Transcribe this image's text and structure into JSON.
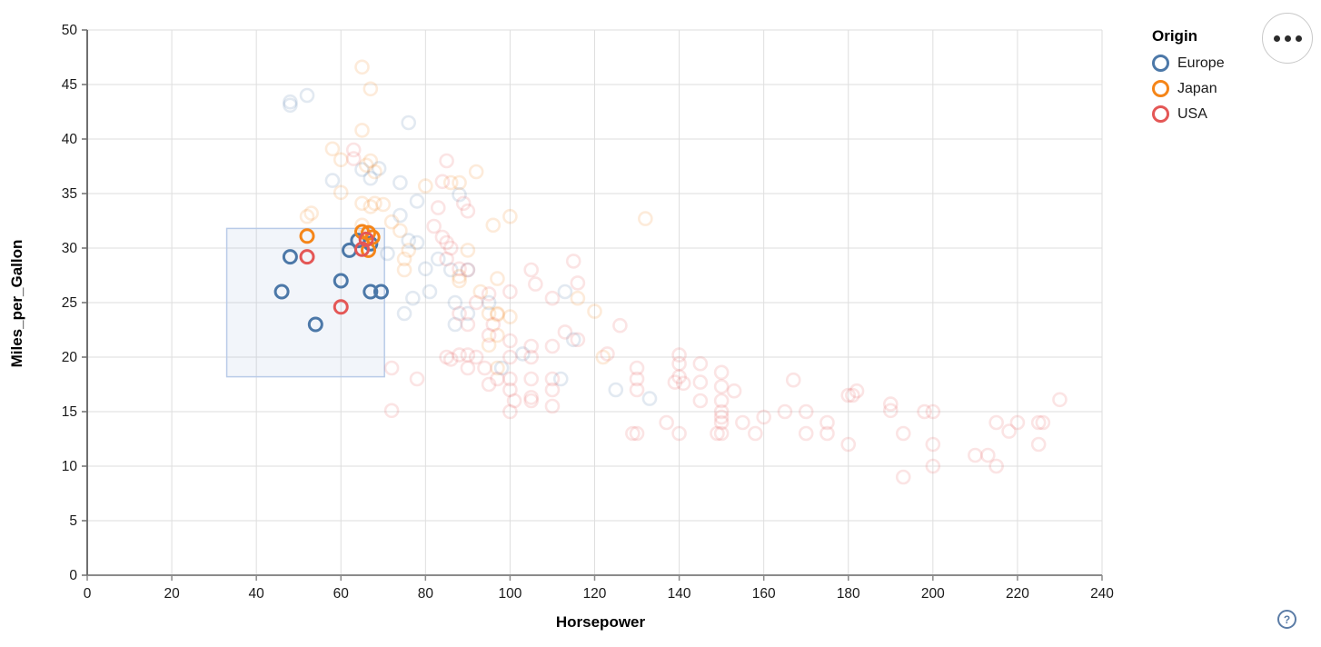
{
  "chart_data": {
    "type": "scatter",
    "title": "",
    "xlabel": "Horsepower",
    "ylabel": "Miles_per_Gallon",
    "xlim": [
      0,
      240
    ],
    "ylim": [
      0,
      50
    ],
    "x_ticks": [
      0,
      20,
      40,
      60,
      80,
      100,
      120,
      140,
      160,
      180,
      200,
      220,
      240
    ],
    "y_ticks": [
      0,
      5,
      10,
      15,
      20,
      25,
      30,
      35,
      40,
      45,
      50
    ],
    "grid": true,
    "legend": {
      "title": "Origin",
      "position": "top-right",
      "entries": [
        {
          "label": "Europe",
          "color": "#4c78a8"
        },
        {
          "label": "Japan",
          "color": "#f58518"
        },
        {
          "label": "USA",
          "color": "#e45756"
        }
      ]
    },
    "brush_selection": {
      "x_range": [
        33,
        70.3
      ],
      "y_range": [
        18.2,
        31.8
      ],
      "fill": "rgba(110,145,205,0.09)",
      "stroke": "#b9cbe8"
    },
    "unselected_opacity": 0.16,
    "series": [
      {
        "name": "Europe",
        "color": "#4c78a8",
        "selected_points": [
          [
            46,
            26
          ],
          [
            48,
            29.2
          ],
          [
            54,
            23
          ],
          [
            60,
            27
          ],
          [
            62,
            29.8
          ],
          [
            64,
            30.7
          ],
          [
            67,
            30.4
          ],
          [
            67,
            26
          ],
          [
            69.5,
            26
          ]
        ],
        "points": [
          [
            48,
            43.1
          ],
          [
            48,
            43.4
          ],
          [
            52,
            44
          ],
          [
            76,
            41.5
          ],
          [
            58,
            36.2
          ],
          [
            65,
            37.2
          ],
          [
            69,
            37.3
          ],
          [
            74,
            36
          ],
          [
            88,
            34.9
          ],
          [
            78,
            34.3
          ],
          [
            74,
            33
          ],
          [
            71,
            29.5
          ],
          [
            78,
            30.5
          ],
          [
            83,
            29
          ],
          [
            81,
            26
          ],
          [
            75,
            24
          ],
          [
            87,
            25
          ],
          [
            90,
            24
          ],
          [
            95,
            25
          ],
          [
            113,
            26
          ],
          [
            90,
            28
          ],
          [
            86,
            28
          ],
          [
            76,
            30.7
          ],
          [
            80,
            28.1
          ],
          [
            77,
            25.4
          ],
          [
            67,
            36.4
          ],
          [
            103,
            20.3
          ],
          [
            98,
            19
          ],
          [
            112,
            18
          ],
          [
            115,
            21.6
          ],
          [
            125,
            17
          ],
          [
            133,
            16.2
          ],
          [
            87,
            23
          ]
        ]
      },
      {
        "name": "Japan",
        "color": "#f58518",
        "selected_points": [
          [
            52,
            31.1
          ],
          [
            65,
            31.5
          ],
          [
            66.5,
            31.4
          ],
          [
            67.5,
            31
          ],
          [
            66.5,
            29.8
          ]
        ],
        "points": [
          [
            65,
            46.6
          ],
          [
            67,
            44.6
          ],
          [
            65,
            40.8
          ],
          [
            58,
            39.1
          ],
          [
            60,
            38.1
          ],
          [
            67,
            38
          ],
          [
            68,
            37
          ],
          [
            66,
            37.6
          ],
          [
            92,
            37
          ],
          [
            86,
            36
          ],
          [
            88,
            36
          ],
          [
            60,
            35.1
          ],
          [
            65,
            34.1
          ],
          [
            68,
            34.1
          ],
          [
            70,
            34
          ],
          [
            67,
            33.8
          ],
          [
            53,
            33.2
          ],
          [
            52,
            32.9
          ],
          [
            65,
            32.1
          ],
          [
            96,
            32.1
          ],
          [
            100,
            32.9
          ],
          [
            132,
            32.7
          ],
          [
            72,
            32.4
          ],
          [
            74,
            31.6
          ],
          [
            76,
            29.8
          ],
          [
            90,
            29.8
          ],
          [
            75,
            29
          ],
          [
            75,
            28
          ],
          [
            88,
            27
          ],
          [
            88,
            27.4
          ],
          [
            97,
            27.2
          ],
          [
            93,
            26
          ],
          [
            95,
            24
          ],
          [
            97,
            24
          ],
          [
            97,
            23.9
          ],
          [
            116,
            25.4
          ],
          [
            120,
            24.2
          ],
          [
            100,
            23.7
          ],
          [
            97,
            22
          ],
          [
            95,
            21.1
          ],
          [
            97,
            19
          ],
          [
            122,
            20
          ],
          [
            80,
            35.7
          ]
        ]
      },
      {
        "name": "USA",
        "color": "#e45756",
        "selected_points": [
          [
            52,
            29.2
          ],
          [
            60,
            24.6
          ],
          [
            65,
            29.9
          ],
          [
            66,
            30.8
          ]
        ],
        "points": [
          [
            63,
            39
          ],
          [
            63,
            38.2
          ],
          [
            85,
            38
          ],
          [
            84,
            36.1
          ],
          [
            89,
            34.1
          ],
          [
            90,
            33.4
          ],
          [
            83,
            33.7
          ],
          [
            82,
            32
          ],
          [
            84,
            31
          ],
          [
            85,
            30.5
          ],
          [
            86,
            30
          ],
          [
            85,
            29
          ],
          [
            88,
            28.1
          ],
          [
            90,
            28
          ],
          [
            105,
            28
          ],
          [
            106,
            26.7
          ],
          [
            115,
            28.8
          ],
          [
            116,
            26.8
          ],
          [
            110,
            25.4
          ],
          [
            95,
            25.8
          ],
          [
            100,
            26
          ],
          [
            92,
            25
          ],
          [
            88,
            24
          ],
          [
            96,
            23
          ],
          [
            90,
            23
          ],
          [
            95,
            22
          ],
          [
            126,
            22.9
          ],
          [
            113,
            22.3
          ],
          [
            116,
            21.6
          ],
          [
            123,
            20.3
          ],
          [
            100,
            21.5
          ],
          [
            105,
            21
          ],
          [
            110,
            21
          ],
          [
            100,
            20
          ],
          [
            105,
            20
          ],
          [
            90,
            20.2
          ],
          [
            88,
            20.2
          ],
          [
            85,
            20
          ],
          [
            86,
            19.8
          ],
          [
            92,
            20
          ],
          [
            94,
            19
          ],
          [
            90,
            19
          ],
          [
            97,
            18
          ],
          [
            100,
            18
          ],
          [
            105,
            18
          ],
          [
            110,
            18
          ],
          [
            100,
            17
          ],
          [
            95,
            17.5
          ],
          [
            110,
            17
          ],
          [
            105,
            16.3
          ],
          [
            101,
            16
          ],
          [
            110,
            15.5
          ],
          [
            100,
            15
          ],
          [
            105,
            16
          ],
          [
            72,
            19
          ],
          [
            78,
            18
          ],
          [
            72,
            15.1
          ],
          [
            129,
            13
          ],
          [
            130,
            13
          ],
          [
            130,
            17
          ],
          [
            130,
            18
          ],
          [
            130,
            19
          ],
          [
            140,
            20.2
          ],
          [
            140,
            19.4
          ],
          [
            140,
            18.2
          ],
          [
            139,
            17.7
          ],
          [
            141,
            17.6
          ],
          [
            137,
            14
          ],
          [
            140,
            13
          ],
          [
            145,
            19.4
          ],
          [
            145,
            17.7
          ],
          [
            145,
            16
          ],
          [
            150,
            18.6
          ],
          [
            150,
            17.3
          ],
          [
            153,
            16.9
          ],
          [
            150,
            16
          ],
          [
            150,
            15
          ],
          [
            150,
            14.5
          ],
          [
            150,
            14
          ],
          [
            150,
            13
          ],
          [
            149,
            13
          ],
          [
            155,
            14
          ],
          [
            158,
            13
          ],
          [
            160,
            14.5
          ],
          [
            165,
            15
          ],
          [
            167,
            17.9
          ],
          [
            170,
            15
          ],
          [
            170,
            13
          ],
          [
            175,
            13
          ],
          [
            175,
            14
          ],
          [
            180,
            12
          ],
          [
            180,
            16.5
          ],
          [
            181,
            16.5
          ],
          [
            182,
            16.9
          ],
          [
            190,
            15.7
          ],
          [
            190,
            15.1
          ],
          [
            193,
            13
          ],
          [
            193,
            9
          ],
          [
            198,
            15
          ],
          [
            200,
            15
          ],
          [
            200,
            12
          ],
          [
            200,
            10
          ],
          [
            210,
            11
          ],
          [
            213,
            11
          ],
          [
            215,
            10
          ],
          [
            215,
            14
          ],
          [
            218,
            13.2
          ],
          [
            220,
            14
          ],
          [
            225,
            14
          ],
          [
            226,
            14
          ],
          [
            225,
            12
          ],
          [
            230,
            16.1
          ]
        ]
      }
    ]
  },
  "ui": {
    "help_icon": "?",
    "menu_icon": "more-options-ellipsis"
  }
}
